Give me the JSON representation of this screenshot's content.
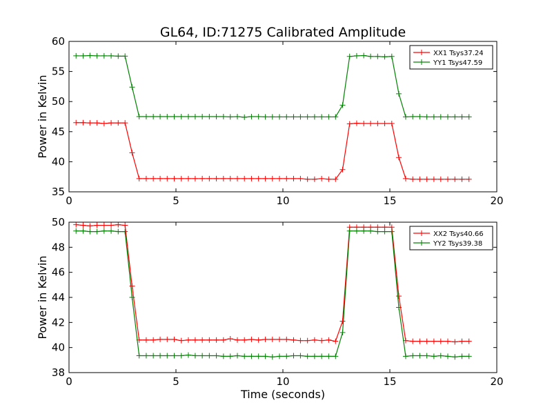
{
  "title": "GL64, ID:71275 Calibrated Amplitude",
  "chart_data": [
    {
      "type": "line",
      "ylabel": "Power in Kelvin",
      "xlabel": "",
      "xlim": [
        0,
        20
      ],
      "ylim": [
        35,
        60
      ],
      "xticks": [
        0,
        5,
        10,
        15,
        20
      ],
      "yticks": [
        35,
        40,
        45,
        50,
        55,
        60
      ],
      "legend_position": "top-right",
      "grid": false,
      "x": [
        0.33,
        0.66,
        0.98,
        1.31,
        1.64,
        1.97,
        2.3,
        2.62,
        2.95,
        3.28,
        3.61,
        3.94,
        4.26,
        4.59,
        4.92,
        5.25,
        5.58,
        5.9,
        6.23,
        6.56,
        6.89,
        7.22,
        7.54,
        7.87,
        8.2,
        8.53,
        8.86,
        9.18,
        9.51,
        9.84,
        10.17,
        10.5,
        10.82,
        11.15,
        11.48,
        11.81,
        12.14,
        12.46,
        12.79,
        13.12,
        13.45,
        13.78,
        14.1,
        14.43,
        14.76,
        15.09,
        15.42,
        15.74,
        16.07,
        16.4,
        16.73,
        17.06,
        17.38,
        17.71,
        18.04,
        18.37,
        18.7
      ],
      "series": [
        {
          "name": "XX1 Tsys37.24",
          "color": "#ff0000",
          "values": [
            46.5,
            46.5,
            46.45,
            46.45,
            46.35,
            46.45,
            46.45,
            46.45,
            41.5,
            37.2,
            37.2,
            37.2,
            37.2,
            37.2,
            37.2,
            37.2,
            37.2,
            37.2,
            37.2,
            37.2,
            37.2,
            37.2,
            37.2,
            37.2,
            37.2,
            37.2,
            37.2,
            37.2,
            37.2,
            37.2,
            37.2,
            37.2,
            37.2,
            37.1,
            37.1,
            37.2,
            37.1,
            37.1,
            38.7,
            46.3,
            46.4,
            46.35,
            46.35,
            46.35,
            46.35,
            46.35,
            40.7,
            37.2,
            37.1,
            37.1,
            37.1,
            37.1,
            37.1,
            37.1,
            37.1,
            37.1,
            37.1
          ]
        },
        {
          "name": "YY1 Tsys47.59",
          "color": "#008000",
          "values": [
            57.6,
            57.6,
            57.65,
            57.6,
            57.6,
            57.6,
            57.55,
            57.55,
            52.4,
            47.5,
            47.5,
            47.5,
            47.5,
            47.5,
            47.5,
            47.5,
            47.5,
            47.5,
            47.5,
            47.5,
            47.5,
            47.5,
            47.45,
            47.5,
            47.4,
            47.5,
            47.5,
            47.45,
            47.45,
            47.45,
            47.45,
            47.45,
            47.45,
            47.45,
            47.45,
            47.45,
            47.45,
            47.45,
            49.4,
            57.5,
            57.6,
            57.65,
            57.5,
            57.5,
            57.45,
            57.5,
            51.3,
            47.45,
            47.5,
            47.5,
            47.45,
            47.45,
            47.45,
            47.45,
            47.45,
            47.45,
            47.45
          ]
        }
      ]
    },
    {
      "type": "line",
      "ylabel": "Power in Kelvin",
      "xlabel": "Time (seconds)",
      "xlim": [
        0,
        20
      ],
      "ylim": [
        38,
        50
      ],
      "xticks": [
        0,
        5,
        10,
        15,
        20
      ],
      "yticks": [
        38,
        40,
        42,
        44,
        46,
        48,
        50
      ],
      "legend_position": "top-right",
      "grid": false,
      "x": [
        0.33,
        0.66,
        0.98,
        1.31,
        1.64,
        1.97,
        2.3,
        2.62,
        2.95,
        3.28,
        3.61,
        3.94,
        4.26,
        4.59,
        4.92,
        5.25,
        5.58,
        5.9,
        6.23,
        6.56,
        6.89,
        7.22,
        7.54,
        7.87,
        8.2,
        8.53,
        8.86,
        9.18,
        9.51,
        9.84,
        10.17,
        10.5,
        10.82,
        11.15,
        11.48,
        11.81,
        12.14,
        12.46,
        12.79,
        13.12,
        13.45,
        13.78,
        14.1,
        14.43,
        14.76,
        15.09,
        15.42,
        15.74,
        16.07,
        16.4,
        16.73,
        17.06,
        17.38,
        17.71,
        18.04,
        18.37,
        18.7
      ],
      "series": [
        {
          "name": "XX2 Tsys40.66",
          "color": "#ff0000",
          "values": [
            49.8,
            49.75,
            49.7,
            49.75,
            49.75,
            49.75,
            49.8,
            49.75,
            44.9,
            40.6,
            40.6,
            40.6,
            40.65,
            40.65,
            40.65,
            40.55,
            40.6,
            40.6,
            40.6,
            40.6,
            40.6,
            40.6,
            40.7,
            40.6,
            40.6,
            40.65,
            40.6,
            40.65,
            40.65,
            40.65,
            40.65,
            40.6,
            40.55,
            40.55,
            40.6,
            40.55,
            40.6,
            40.5,
            42.1,
            49.6,
            49.6,
            49.6,
            49.6,
            49.6,
            49.6,
            49.6,
            44.1,
            40.55,
            40.5,
            40.5,
            40.5,
            40.5,
            40.5,
            40.5,
            40.45,
            40.5,
            40.5
          ]
        },
        {
          "name": "YY2 Tsys39.38",
          "color": "#008000",
          "values": [
            49.3,
            49.3,
            49.25,
            49.25,
            49.3,
            49.3,
            49.25,
            49.25,
            44.0,
            39.35,
            39.35,
            39.35,
            39.35,
            39.35,
            39.35,
            39.35,
            39.4,
            39.35,
            39.35,
            39.35,
            39.35,
            39.3,
            39.3,
            39.35,
            39.3,
            39.3,
            39.3,
            39.3,
            39.25,
            39.3,
            39.3,
            39.35,
            39.35,
            39.3,
            39.3,
            39.3,
            39.3,
            39.3,
            41.2,
            49.3,
            49.3,
            49.3,
            49.3,
            49.25,
            49.25,
            49.25,
            43.2,
            39.3,
            39.35,
            39.35,
            39.35,
            39.3,
            39.35,
            39.3,
            39.25,
            39.3,
            39.3
          ]
        }
      ]
    }
  ]
}
